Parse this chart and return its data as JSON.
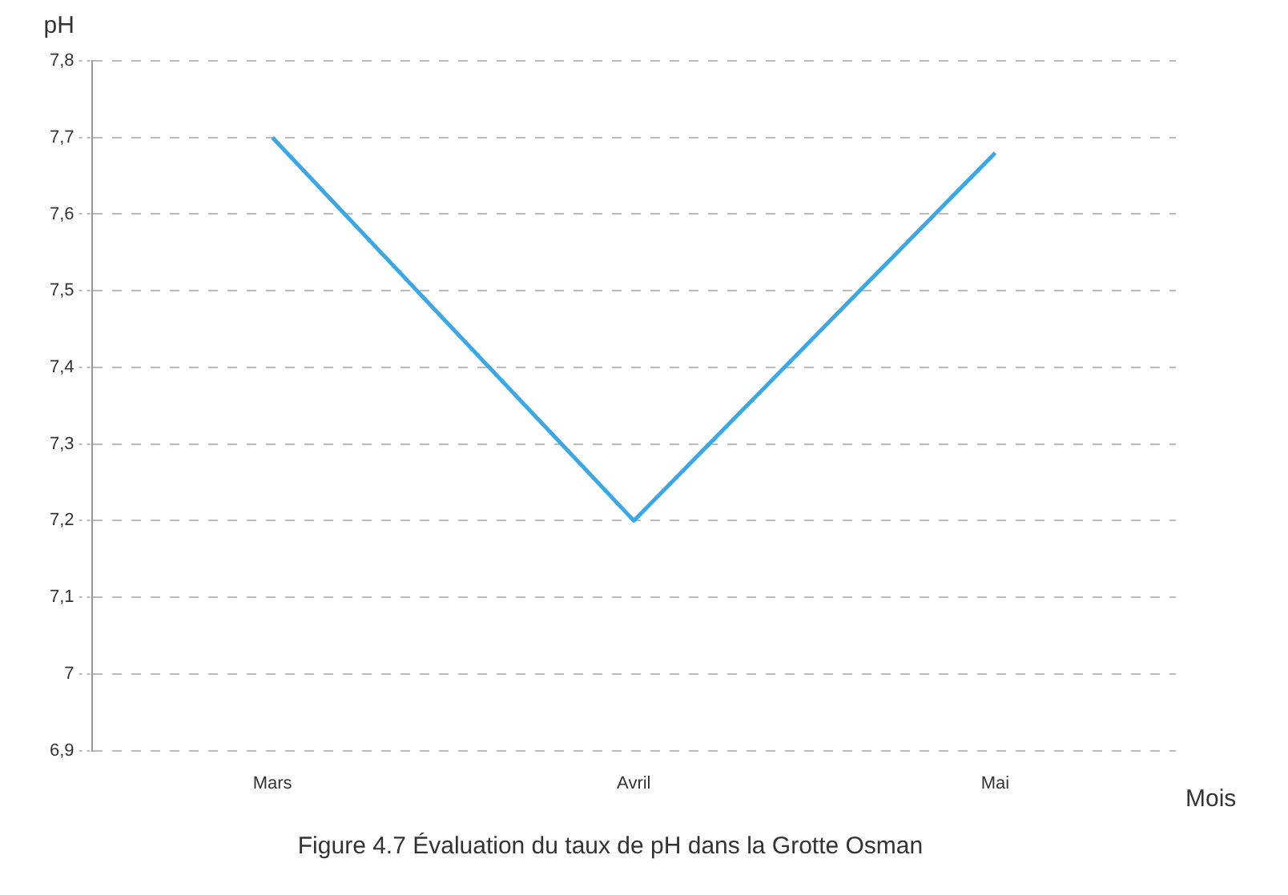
{
  "chart_data": {
    "type": "line",
    "title": "Figure 4.7 Évaluation du taux de pH dans la Grotte Osman",
    "xlabel": "Mois",
    "ylabel": "pH",
    "categories": [
      "Mars",
      "Avril",
      "Mai"
    ],
    "series": [
      {
        "color": "#3aa8e6",
        "values": [
          7.7,
          7.2,
          7.68
        ]
      }
    ],
    "ylim": [
      6.9,
      7.8
    ],
    "yticks": [
      {
        "value": 6.9,
        "label": "6,9"
      },
      {
        "value": 7,
        "label": "7"
      },
      {
        "value": 7.1,
        "label": "7,1"
      },
      {
        "value": 7.2,
        "label": "7,2"
      },
      {
        "value": 7.3,
        "label": "7,3"
      },
      {
        "value": 7.4,
        "label": "7,4"
      },
      {
        "value": 7.5,
        "label": "7,5"
      },
      {
        "value": 7.6,
        "label": "7,6"
      },
      {
        "value": 7.7,
        "label": "7,7"
      },
      {
        "value": 7.8,
        "label": "7,8"
      }
    ],
    "grid": "y",
    "legend": false,
    "marker": "none",
    "line_style": "solid"
  }
}
